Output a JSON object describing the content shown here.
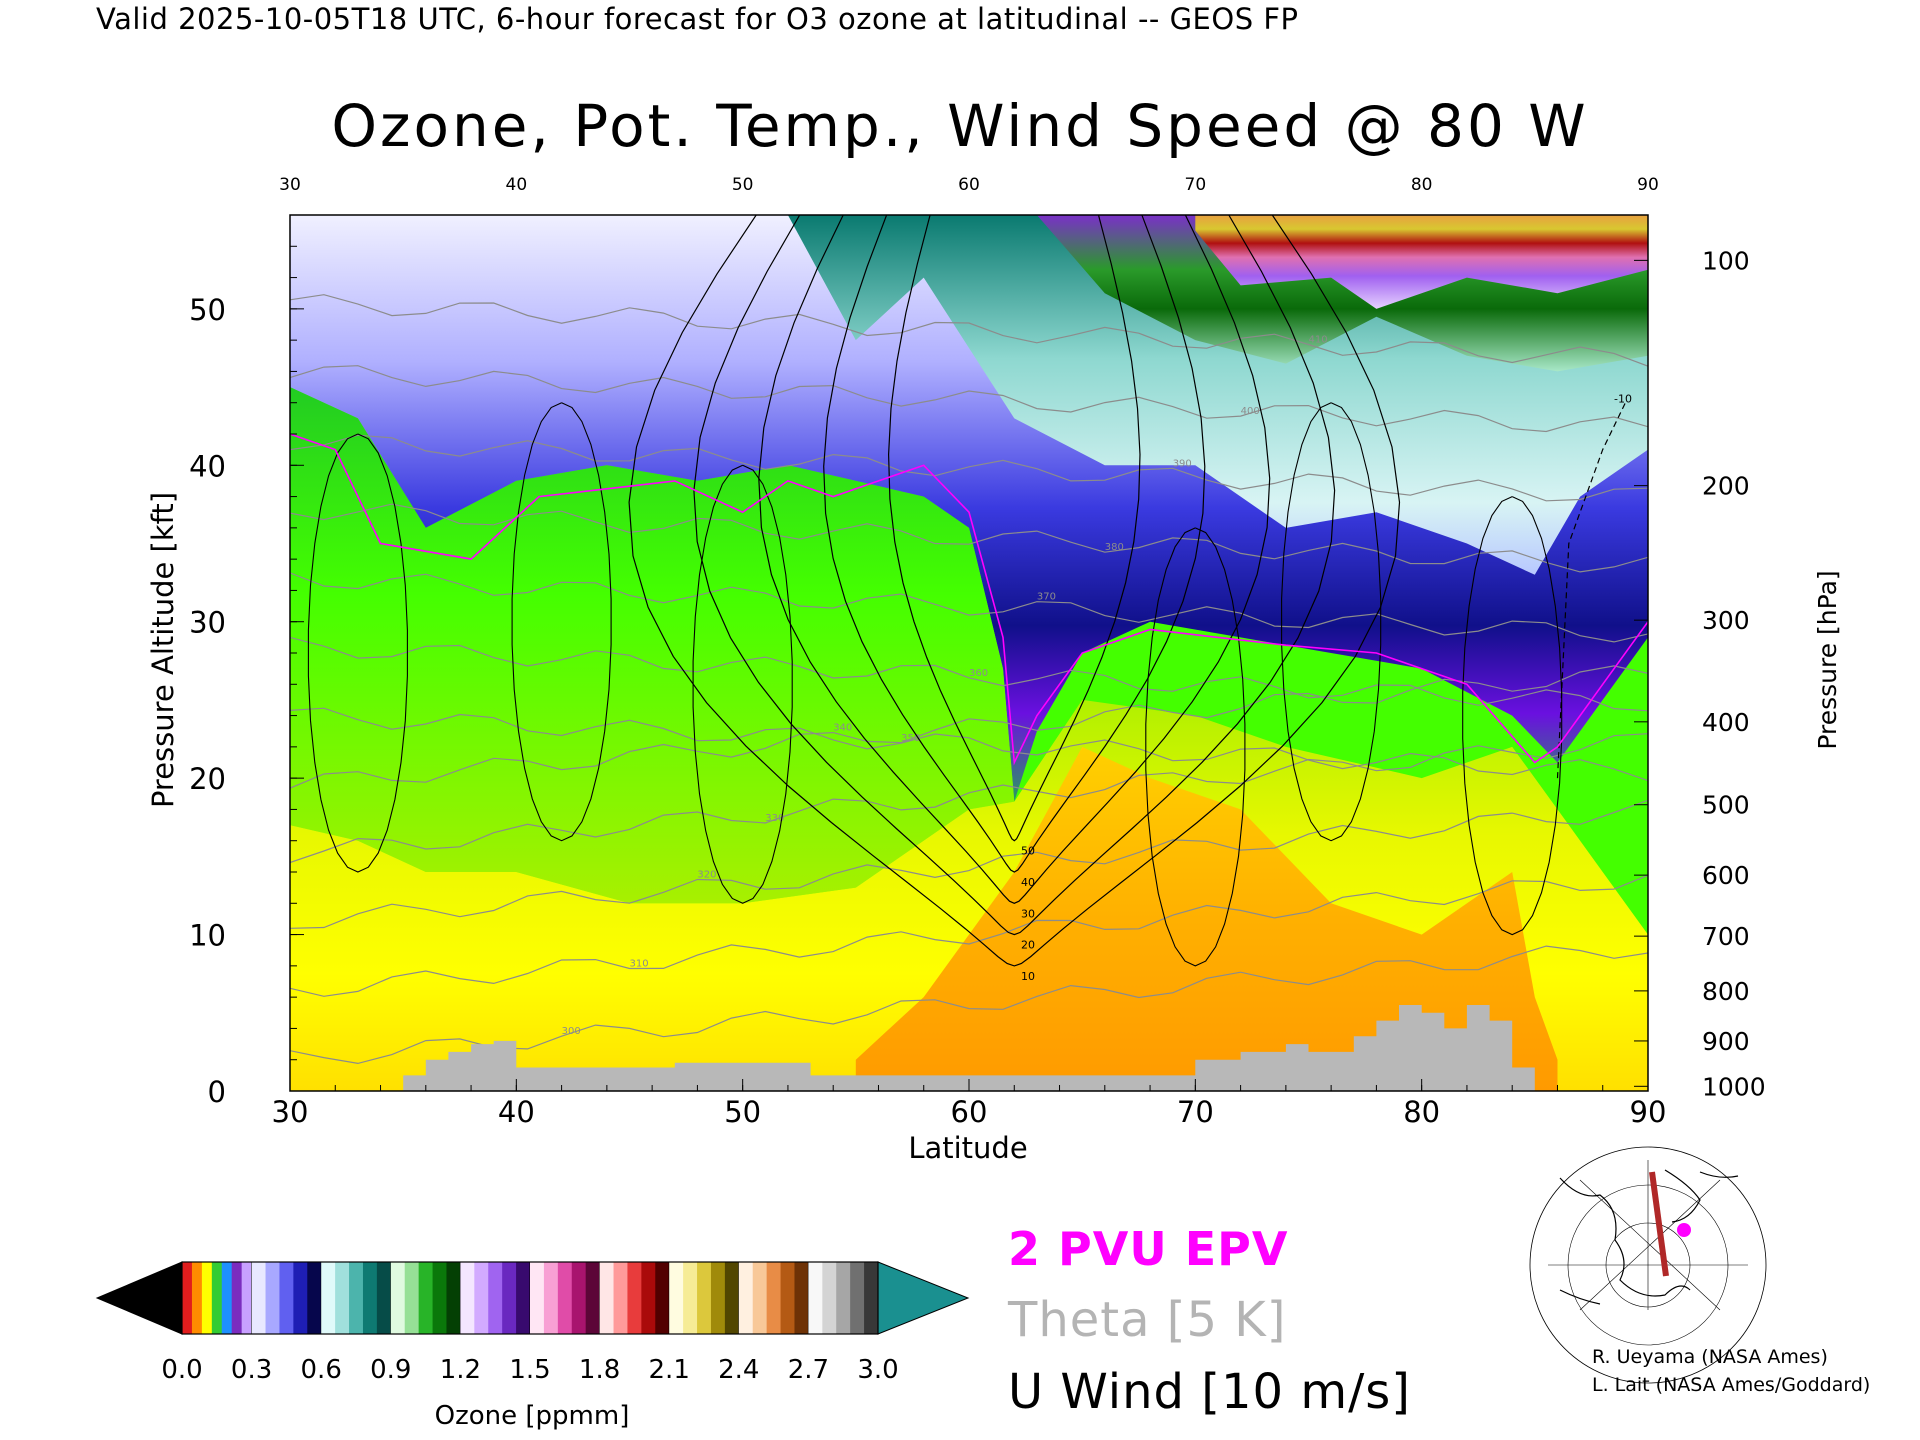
{
  "header": {
    "valid_line": "Valid 2025-10-05T18 UTC, 6-hour forecast for O3 ozone at latitudinal -- GEOS FP",
    "title": "Ozone, Pot. Temp., Wind Speed @ 80 W"
  },
  "legend": {
    "epv": "2 PVU EPV",
    "theta": "Theta [5 K]",
    "uwind": "U Wind [10 m/s]",
    "colors": {
      "epv": "#ff00ff",
      "theta": "#b4b4b4",
      "uwind": "#000000"
    }
  },
  "colorbar": {
    "label": "Ozone [ppmm]",
    "ticks": [
      "0.0",
      "0.3",
      "0.6",
      "0.9",
      "1.2",
      "1.5",
      "1.8",
      "2.1",
      "2.4",
      "2.7",
      "3.0"
    ],
    "range": [
      0.0,
      3.0
    ],
    "under_color": "#000000",
    "over_color": "#1a9090",
    "bands": [
      {
        "from": 0.0,
        "to": 0.3,
        "colors": [
          "#e11d1d",
          "#ff8c00",
          "#ffff00",
          "#33cc33",
          "#1e90ff",
          "#7b2cbf",
          "#c8a0ff"
        ]
      },
      {
        "from": 0.3,
        "to": 0.6,
        "colors": [
          "#e8e8ff",
          "#a8a8ff",
          "#6060f0",
          "#1e1eb4",
          "#06064c"
        ]
      },
      {
        "from": 0.6,
        "to": 0.9,
        "colors": [
          "#e0fafa",
          "#a0e0dc",
          "#4cb4ac",
          "#0e7a72",
          "#064c48"
        ]
      },
      {
        "from": 0.9,
        "to": 1.2,
        "colors": [
          "#e0fae0",
          "#96e096",
          "#28b428",
          "#0a780a",
          "#044004"
        ]
      },
      {
        "from": 1.2,
        "to": 1.5,
        "colors": [
          "#f4e6ff",
          "#d2aaff",
          "#a064f0",
          "#6a28c0",
          "#380a6e"
        ]
      },
      {
        "from": 1.5,
        "to": 1.8,
        "colors": [
          "#ffe6f4",
          "#f8a0d4",
          "#e04ca8",
          "#a8146e",
          "#5c0638"
        ]
      },
      {
        "from": 1.8,
        "to": 2.1,
        "colors": [
          "#ffe6e6",
          "#ff9a9a",
          "#e83c3c",
          "#aa0a0a",
          "#520000"
        ]
      },
      {
        "from": 2.1,
        "to": 2.4,
        "colors": [
          "#fffce0",
          "#f6ec96",
          "#dcc83c",
          "#a08a0a",
          "#524600"
        ]
      },
      {
        "from": 2.4,
        "to": 2.7,
        "colors": [
          "#fff0e0",
          "#f8c898",
          "#e88c46",
          "#b45a14",
          "#6e3206"
        ]
      },
      {
        "from": 2.7,
        "to": 3.0,
        "colors": [
          "#f8f8f8",
          "#d4d4d4",
          "#a6a6a6",
          "#707070",
          "#383838"
        ]
      }
    ]
  },
  "credits": [
    "R. Ueyama (NASA Ames)",
    "L. Lait (NASA Ames/Goddard)"
  ],
  "chart_data": {
    "type": "heatmap",
    "title": "Ozone, Pot. Temp., Wind Speed @ 80 W",
    "xlabel": "Latitude",
    "ylabel": "Pressure Altitude [kft]",
    "y2label": "Pressure [hPa]",
    "xlim": [
      30,
      90
    ],
    "ylim": [
      0,
      56
    ],
    "x_ticks": [
      30,
      40,
      50,
      60,
      70,
      80,
      90
    ],
    "y_ticks": [
      0,
      10,
      20,
      30,
      40,
      50
    ],
    "pressure_ticks": [
      {
        "hPa": 100,
        "kft": 53.1
      },
      {
        "hPa": 200,
        "kft": 38.7
      },
      {
        "hPa": 300,
        "kft": 30.1
      },
      {
        "hPa": 400,
        "kft": 23.6
      },
      {
        "hPa": 500,
        "kft": 18.3
      },
      {
        "hPa": 600,
        "kft": 13.8
      },
      {
        "hPa": 700,
        "kft": 9.9
      },
      {
        "hPa": 800,
        "kft": 6.4
      },
      {
        "hPa": 900,
        "kft": 3.2
      },
      {
        "hPa": 1000,
        "kft": 0.3
      }
    ],
    "ozone_fields": [
      {
        "name": "stratosphere-pink-gold",
        "ozone_ppmm": 2.0,
        "boundary": [
          [
            70,
            55
          ],
          [
            72,
            51.5
          ],
          [
            76,
            52
          ],
          [
            78,
            50
          ],
          [
            82,
            52
          ],
          [
            86,
            51
          ],
          [
            90,
            52.5
          ],
          [
            90,
            56
          ],
          [
            70,
            56
          ]
        ]
      },
      {
        "name": "stratosphere-purple",
        "ozone_ppmm": 1.3,
        "boundary": [
          [
            63,
            56
          ],
          [
            66,
            51
          ],
          [
            70,
            48
          ],
          [
            74,
            46.5
          ],
          [
            78,
            49.5
          ],
          [
            82,
            47
          ],
          [
            86,
            46
          ],
          [
            90,
            47
          ],
          [
            90,
            56
          ]
        ]
      },
      {
        "name": "stratosphere-teal",
        "ozone_ppmm": 0.75,
        "boundary": [
          [
            52,
            56
          ],
          [
            55,
            48
          ],
          [
            58,
            52
          ],
          [
            62,
            43
          ],
          [
            66,
            40
          ],
          [
            70,
            40
          ],
          [
            74,
            36
          ],
          [
            78,
            37
          ],
          [
            82,
            35
          ],
          [
            85,
            33
          ],
          [
            87,
            38
          ],
          [
            90,
            41
          ],
          [
            90,
            56
          ]
        ]
      },
      {
        "name": "ozone-blue",
        "ozone_ppmm": 0.4,
        "boundary": [
          [
            30,
            56
          ],
          [
            30,
            45
          ],
          [
            33,
            43
          ],
          [
            36,
            36
          ],
          [
            40,
            39
          ],
          [
            44,
            40
          ],
          [
            48,
            39
          ],
          [
            52,
            40
          ],
          [
            55,
            39
          ],
          [
            58,
            38
          ],
          [
            60,
            36
          ],
          [
            61.5,
            27
          ],
          [
            62,
            18.5
          ],
          [
            63,
            23
          ],
          [
            65,
            28
          ],
          [
            68,
            30
          ],
          [
            72,
            29
          ],
          [
            76,
            28
          ],
          [
            80,
            27
          ],
          [
            84,
            24
          ],
          [
            86,
            21
          ],
          [
            88,
            25
          ],
          [
            90,
            29
          ],
          [
            90,
            56
          ]
        ]
      },
      {
        "name": "troposphere-green",
        "ozone_ppmm": 0.12,
        "boundary": [
          [
            30,
            45
          ],
          [
            33,
            43
          ],
          [
            36,
            36
          ],
          [
            40,
            39
          ],
          [
            44,
            40
          ],
          [
            48,
            39
          ],
          [
            52,
            40
          ],
          [
            55,
            39
          ],
          [
            58,
            38
          ],
          [
            60,
            36
          ],
          [
            61.5,
            27
          ],
          [
            62,
            18.5
          ],
          [
            60,
            18
          ],
          [
            55,
            13
          ],
          [
            50,
            12
          ],
          [
            45,
            12
          ],
          [
            40,
            14
          ],
          [
            36,
            14
          ],
          [
            33,
            16
          ],
          [
            30,
            17
          ]
        ]
      },
      {
        "name": "troposphere-yellow",
        "ozone_ppmm": 0.08,
        "boundary": [
          [
            30,
            17
          ],
          [
            33,
            16
          ],
          [
            36,
            14
          ],
          [
            40,
            14
          ],
          [
            45,
            12
          ],
          [
            50,
            12
          ],
          [
            55,
            13
          ],
          [
            60,
            18
          ],
          [
            62,
            18.5
          ],
          [
            65,
            25
          ],
          [
            70,
            24
          ],
          [
            74,
            22
          ],
          [
            80,
            20
          ],
          [
            84,
            22
          ],
          [
            86,
            18
          ],
          [
            88,
            14
          ],
          [
            90,
            10
          ],
          [
            90,
            0
          ],
          [
            30,
            0
          ]
        ]
      },
      {
        "name": "boundary-layer-orange",
        "ozone_ppmm": 0.05,
        "boundary": [
          [
            55,
            2
          ],
          [
            58,
            6
          ],
          [
            62,
            14
          ],
          [
            65,
            22
          ],
          [
            68,
            20
          ],
          [
            72,
            18
          ],
          [
            76,
            12
          ],
          [
            80,
            10
          ],
          [
            84,
            14
          ],
          [
            85,
            6
          ],
          [
            86,
            2
          ],
          [
            86,
            0
          ],
          [
            55,
            0
          ]
        ]
      }
    ],
    "tropopause_2pvu": [
      [
        30,
        42
      ],
      [
        32,
        41
      ],
      [
        34,
        35
      ],
      [
        38,
        34
      ],
      [
        41,
        38
      ],
      [
        44,
        38.5
      ],
      [
        47,
        39
      ],
      [
        50,
        37
      ],
      [
        52,
        39
      ],
      [
        54,
        38
      ],
      [
        56,
        39
      ],
      [
        58,
        40
      ],
      [
        60,
        37
      ],
      [
        61.5,
        29
      ],
      [
        62,
        21
      ],
      [
        63,
        24
      ],
      [
        65,
        28
      ],
      [
        68,
        29.5
      ],
      [
        71,
        29
      ],
      [
        74,
        28.5
      ],
      [
        78,
        28
      ],
      [
        82,
        26
      ],
      [
        85,
        21
      ],
      [
        86,
        22
      ],
      [
        88,
        26
      ],
      [
        90,
        30
      ]
    ],
    "theta_isentropes_K": [
      300,
      310,
      320,
      330,
      340,
      350,
      360,
      370,
      380,
      390,
      400,
      410
    ],
    "u_wind_contours_mps": [
      -10,
      0,
      10,
      20,
      30,
      40,
      50
    ],
    "u_wind_jet_core": {
      "lat": 62,
      "kft": 22,
      "mps": 50
    },
    "terrain_kft": [
      [
        30,
        0
      ],
      [
        35,
        0
      ],
      [
        35,
        1
      ],
      [
        36,
        2
      ],
      [
        37,
        2.5
      ],
      [
        38,
        3
      ],
      [
        39,
        3.2
      ],
      [
        40,
        1.5
      ],
      [
        44,
        1.5
      ],
      [
        46,
        1.5
      ],
      [
        47,
        1.8
      ],
      [
        52,
        1.8
      ],
      [
        53,
        1
      ],
      [
        60,
        1
      ],
      [
        63,
        1
      ],
      [
        66,
        1
      ],
      [
        69,
        1
      ],
      [
        70,
        2
      ],
      [
        72,
        2.5
      ],
      [
        74,
        3
      ],
      [
        75,
        2.5
      ],
      [
        76,
        2.5
      ],
      [
        77,
        3.5
      ],
      [
        78,
        4.5
      ],
      [
        79,
        5.5
      ],
      [
        80,
        5
      ],
      [
        81,
        4
      ],
      [
        82,
        5.5
      ],
      [
        83,
        4.5
      ],
      [
        84,
        1.5
      ],
      [
        85,
        0
      ],
      [
        90,
        0
      ]
    ]
  }
}
